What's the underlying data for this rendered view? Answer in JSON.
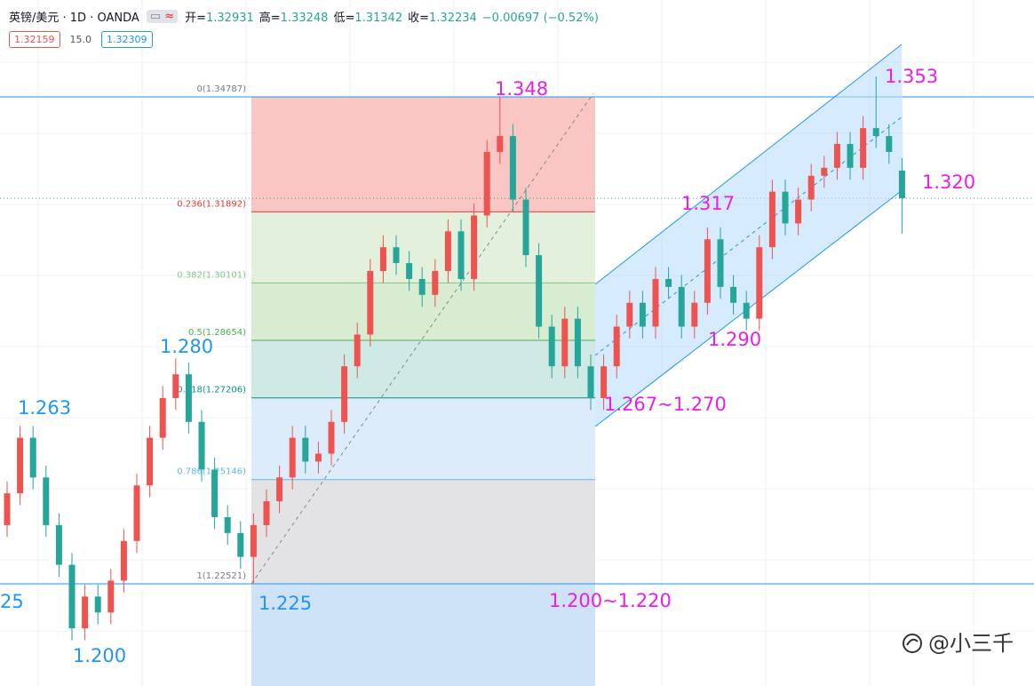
{
  "header": {
    "symbol": "英镑/美元 · 1D · OANDA",
    "ohlc": [
      {
        "label": "开=",
        "value": "1.32931"
      },
      {
        "label": "高=",
        "value": "1.33248"
      },
      {
        "label": "低=",
        "value": "1.31342"
      },
      {
        "label": "收=",
        "value": "1.32234"
      },
      {
        "label": "",
        "value": "−0.00697 (−0.52%)"
      }
    ],
    "sell": "1.32159",
    "spread": "15.0",
    "buy": "1.32309"
  },
  "chart_data": {
    "type": "candlestick",
    "up_color": "#ef5350",
    "down_color": "#26a69a",
    "ylim": [
      1.19947,
      1.37227
    ],
    "open": [
      1.24,
      1.248,
      1.262,
      1.252,
      1.24,
      1.23,
      1.214,
      1.222,
      1.218,
      1.226,
      1.236,
      1.25,
      1.262,
      1.272,
      1.278,
      1.266,
      1.254,
      1.242,
      1.238,
      1.232,
      1.24,
      1.246,
      1.252,
      1.262,
      1.256,
      1.258,
      1.266,
      1.28,
      1.288,
      1.304,
      1.31,
      1.306,
      1.302,
      1.298,
      1.304,
      1.314,
      1.302,
      1.318,
      1.334,
      1.338,
      1.322,
      1.308,
      1.29,
      1.28,
      1.292,
      1.28,
      1.272,
      1.28,
      1.29,
      1.296,
      1.29,
      1.302,
      1.3,
      1.29,
      1.296,
      1.312,
      1.3,
      1.296,
      1.292,
      1.31,
      1.324,
      1.316,
      1.322,
      1.328,
      1.33,
      1.336,
      1.33,
      1.34,
      1.338,
      1.32931
    ],
    "high": [
      1.251,
      1.265,
      1.265,
      1.255,
      1.243,
      1.233,
      1.225,
      1.225,
      1.229,
      1.239,
      1.253,
      1.265,
      1.275,
      1.282,
      1.281,
      1.269,
      1.257,
      1.245,
      1.241,
      1.243,
      1.249,
      1.255,
      1.265,
      1.265,
      1.261,
      1.269,
      1.283,
      1.291,
      1.307,
      1.313,
      1.313,
      1.309,
      1.305,
      1.307,
      1.317,
      1.317,
      1.321,
      1.337,
      1.348,
      1.341,
      1.325,
      1.311,
      1.293,
      1.295,
      1.295,
      1.283,
      1.283,
      1.293,
      1.299,
      1.299,
      1.305,
      1.305,
      1.303,
      1.299,
      1.315,
      1.315,
      1.303,
      1.299,
      1.313,
      1.327,
      1.327,
      1.325,
      1.331,
      1.333,
      1.339,
      1.339,
      1.343,
      1.353,
      1.341,
      1.33248
    ],
    "low": [
      1.237,
      1.245,
      1.249,
      1.237,
      1.227,
      1.211,
      1.211,
      1.215,
      1.215,
      1.223,
      1.233,
      1.247,
      1.259,
      1.269,
      1.263,
      1.251,
      1.239,
      1.235,
      1.229,
      1.22521,
      1.237,
      1.243,
      1.249,
      1.253,
      1.253,
      1.255,
      1.263,
      1.277,
      1.285,
      1.301,
      1.303,
      1.299,
      1.295,
      1.295,
      1.301,
      1.299,
      1.299,
      1.315,
      1.331,
      1.319,
      1.305,
      1.287,
      1.277,
      1.277,
      1.277,
      1.269,
      1.269,
      1.277,
      1.287,
      1.287,
      1.287,
      1.297,
      1.287,
      1.287,
      1.293,
      1.297,
      1.293,
      1.289,
      1.289,
      1.307,
      1.313,
      1.313,
      1.319,
      1.325,
      1.327,
      1.327,
      1.327,
      1.335,
      1.331,
      1.31342
    ],
    "close": [
      1.248,
      1.262,
      1.252,
      1.24,
      1.23,
      1.214,
      1.222,
      1.218,
      1.226,
      1.236,
      1.25,
      1.262,
      1.272,
      1.278,
      1.266,
      1.254,
      1.242,
      1.238,
      1.232,
      1.24,
      1.246,
      1.252,
      1.262,
      1.256,
      1.258,
      1.266,
      1.28,
      1.288,
      1.304,
      1.31,
      1.306,
      1.302,
      1.298,
      1.304,
      1.314,
      1.302,
      1.318,
      1.334,
      1.338,
      1.322,
      1.308,
      1.29,
      1.28,
      1.292,
      1.28,
      1.272,
      1.28,
      1.29,
      1.296,
      1.29,
      1.302,
      1.3,
      1.29,
      1.296,
      1.312,
      1.3,
      1.296,
      1.292,
      1.31,
      1.324,
      1.316,
      1.322,
      1.328,
      1.33,
      1.336,
      1.33,
      1.34,
      1.338,
      1.334,
      1.32234
    ],
    "fib": [
      {
        "price": 1.34787,
        "label": "0(1.34787)",
        "color": "#787b86",
        "fill": "#f9c6c4"
      },
      {
        "price": 1.31892,
        "label": "0.236(1.31892)",
        "color": "#e53935",
        "fill": "#e3f1dc"
      },
      {
        "price": 1.30101,
        "label": "0.382(1.30101)",
        "color": "#81c784",
        "fill": "#d8ecd2"
      },
      {
        "price": 1.28654,
        "label": "0.5(1.28654)",
        "color": "#4caf50",
        "fill": "#cfe9e4"
      },
      {
        "price": 1.27206,
        "label": "0.618(1.27206)",
        "color": "#009688",
        "fill": "#dcecfb"
      },
      {
        "price": 1.25146,
        "label": "0.786(1.25146)",
        "color": "#64b5f6",
        "fill": "#e3e3e6"
      },
      {
        "price": 1.22521,
        "label": "1(1.22521)",
        "color": "#787b86",
        "fill": "#cfe3f8"
      }
    ],
    "annotations": [
      {
        "text": "1.263",
        "color": "#2196f3"
      },
      {
        "text": "1.280",
        "color": "#2196f3"
      },
      {
        "text": "1.225",
        "color": "#2196f3"
      },
      {
        "text": "1.200",
        "color": "#2196f3"
      },
      {
        "text": "25",
        "color": "#2196f3"
      },
      {
        "text": "1.348",
        "color": "#e91ee9"
      },
      {
        "text": "1.317",
        "color": "#e91ee9"
      },
      {
        "text": "1.290",
        "color": "#e91ee9"
      },
      {
        "text": "1.267~1.270",
        "color": "#e91ee9"
      },
      {
        "text": "1.353",
        "color": "#e91ee9"
      },
      {
        "text": "1.320",
        "color": "#e91ee9"
      },
      {
        "text": "1.200~1.220",
        "color": "#e91ee9"
      }
    ],
    "watermark": "@小三千"
  }
}
